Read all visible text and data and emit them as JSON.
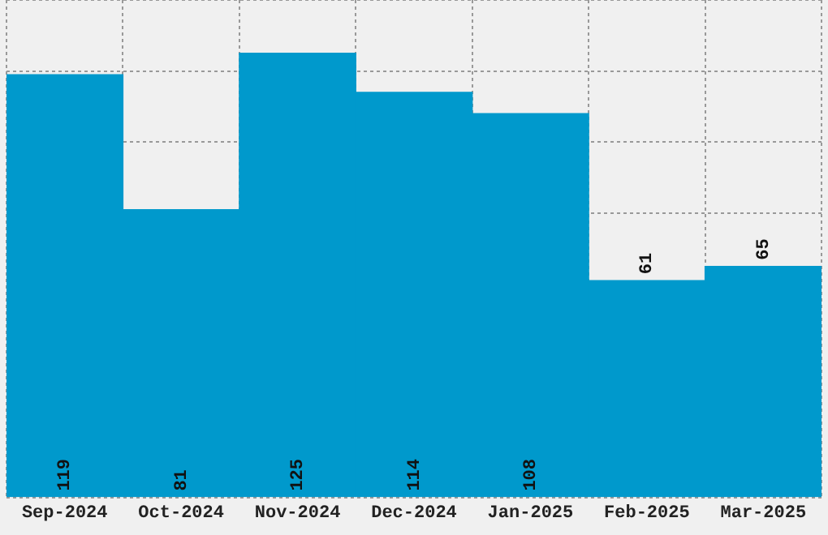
{
  "chart_data": {
    "type": "bar",
    "categories": [
      "Sep-2024",
      "Oct-2024",
      "Nov-2024",
      "Dec-2024",
      "Jan-2025",
      "Feb-2025",
      "Mar-2025"
    ],
    "values": [
      119,
      81,
      125,
      114,
      108,
      61,
      65
    ],
    "color": "#0099cc",
    "data_labels": true,
    "ylim": [
      0,
      140
    ],
    "grid": true,
    "tick_labels": "x"
  }
}
